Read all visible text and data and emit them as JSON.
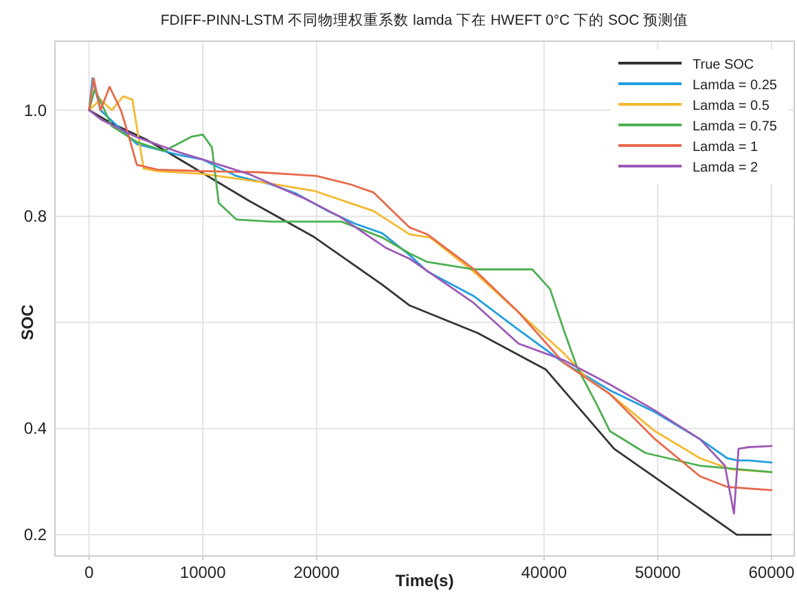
{
  "chart_data": {
    "type": "line",
    "title": "FDIFF-PINN-LSTM 不同物理权重系数 lamda 下在 HWEFT 0°C 下的 SOC 预测值",
    "xlabel": "Time(s)",
    "ylabel": "SOC",
    "xlim": [
      -3000,
      62000
    ],
    "ylim": [
      0.16,
      1.13
    ],
    "xticks": [
      0,
      10000,
      20000,
      40000,
      50000,
      60000
    ],
    "yticks": [
      0.2,
      0.4,
      {
        "value": 0.6,
        "label": null
      },
      0.8,
      {
        "value": 1.0,
        "label": "1.0"
      }
    ],
    "grid": true,
    "legend": "top right",
    "marker": "none",
    "line_style": "solid",
    "series": [
      {
        "name": "True SOC",
        "color": "#333333",
        "x": [
          0,
          2000,
          5000,
          9950,
          14000,
          19780,
          25780,
          28180,
          34170,
          40170,
          46160,
          52160,
          56950,
          59950
        ],
        "values": [
          1.0,
          0.975,
          0.945,
          0.882,
          0.83,
          0.761,
          0.671,
          0.632,
          0.58,
          0.511,
          0.362,
          0.272,
          0.2,
          0.2
        ]
      },
      {
        "name": "Lamda = 0.25",
        "color": "#1f9ee0",
        "x": [
          0,
          300,
          1000,
          2500,
          4200,
          8000,
          10000,
          12950,
          16000,
          18200,
          21000,
          23400,
          25780,
          28180,
          29740,
          33800,
          37770,
          41730,
          45800,
          49760,
          53720,
          56120,
          57000,
          58000,
          60000
        ],
        "values": [
          1.0,
          1.06,
          1.0,
          0.97,
          0.936,
          0.915,
          0.907,
          0.876,
          0.86,
          0.843,
          0.81,
          0.786,
          0.768,
          0.727,
          0.696,
          0.65,
          0.586,
          0.524,
          0.472,
          0.431,
          0.38,
          0.344,
          0.34,
          0.34,
          0.336
        ]
      },
      {
        "name": "Lamda = 0.5",
        "color": "#f5b82e",
        "x": [
          0,
          1000,
          2000,
          3000,
          3800,
          4800,
          6000,
          10000,
          15000,
          19780,
          25000,
          28180,
          30000,
          33800,
          37770,
          41730,
          43770,
          45800,
          49760,
          53720,
          56500,
          60000
        ],
        "values": [
          1.0,
          1.02,
          1.0,
          1.026,
          1.02,
          0.89,
          0.885,
          0.88,
          0.865,
          0.848,
          0.81,
          0.766,
          0.76,
          0.696,
          0.619,
          0.542,
          0.495,
          0.465,
          0.395,
          0.344,
          0.323,
          0.318
        ]
      },
      {
        "name": "Lamda = 0.75",
        "color": "#4caf50",
        "x": [
          0,
          500,
          2000,
          4200,
          6600,
          9000,
          10000,
          10800,
          11400,
          12950,
          16000,
          22180,
          25780,
          28180,
          29740,
          33800,
          37770,
          38970,
          40530,
          41730,
          42900,
          44600,
          45800,
          48920,
          53720,
          60000
        ],
        "values": [
          1.0,
          1.04,
          0.97,
          0.94,
          0.923,
          0.95,
          0.954,
          0.93,
          0.825,
          0.794,
          0.79,
          0.79,
          0.76,
          0.73,
          0.714,
          0.7,
          0.7,
          0.7,
          0.663,
          0.586,
          0.516,
          0.447,
          0.395,
          0.354,
          0.33,
          0.318
        ]
      },
      {
        "name": "Lamda = 1",
        "color": "#e8694a",
        "x": [
          0,
          400,
          1000,
          1800,
          2800,
          3500,
          4200,
          6000,
          10000,
          15000,
          20000,
          23000,
          25000,
          28180,
          29740,
          33800,
          37770,
          41730,
          45800,
          49760,
          53720,
          56120,
          60000
        ],
        "values": [
          1.0,
          1.06,
          1.0,
          1.044,
          1.0,
          0.95,
          0.897,
          0.888,
          0.885,
          0.883,
          0.876,
          0.86,
          0.845,
          0.779,
          0.766,
          0.701,
          0.619,
          0.524,
          0.465,
          0.38,
          0.31,
          0.29,
          0.284
        ]
      },
      {
        "name": "Lamda = 2",
        "color": "#9b59b6",
        "x": [
          0,
          1080,
          4200,
          8000,
          10000,
          14000,
          18800,
          22000,
          26140,
          28180,
          33800,
          37770,
          41730,
          45800,
          49760,
          53720,
          55900,
          56700,
          57100,
          58000,
          60000
        ],
        "values": [
          1.0,
          0.982,
          0.949,
          0.92,
          0.907,
          0.88,
          0.835,
          0.8,
          0.74,
          0.72,
          0.637,
          0.56,
          0.529,
          0.483,
          0.434,
          0.38,
          0.33,
          0.24,
          0.362,
          0.365,
          0.367
        ]
      }
    ]
  }
}
